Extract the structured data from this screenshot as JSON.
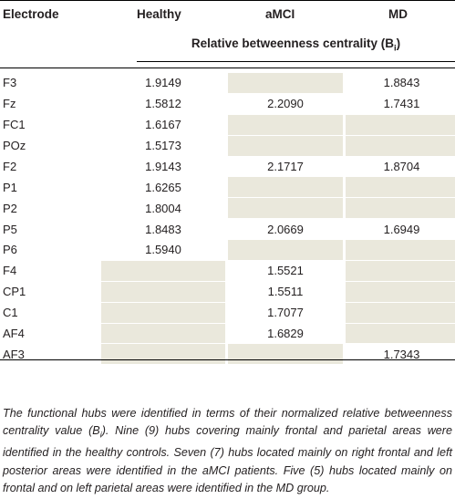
{
  "header": {
    "electrode": "Electrode",
    "healthy": "Healthy",
    "amci": "aMCI",
    "md": "MD"
  },
  "subheader": {
    "text": "Relative betweenness centrality (B",
    "sub": "i",
    "close": ")"
  },
  "rows": [
    {
      "electrode": "F3",
      "healthy": "1.9149",
      "amci": "",
      "md": "1.8843"
    },
    {
      "electrode": "Fz",
      "healthy": "1.5812",
      "amci": "2.2090",
      "md": "1.7431"
    },
    {
      "electrode": "FC1",
      "healthy": "1.6167",
      "amci": "",
      "md": ""
    },
    {
      "electrode": "POz",
      "healthy": "1.5173",
      "amci": "",
      "md": ""
    },
    {
      "electrode": "F2",
      "healthy": "1.9143",
      "amci": "2.1717",
      "md": "1.8704"
    },
    {
      "electrode": "P1",
      "healthy": "1.6265",
      "amci": "",
      "md": ""
    },
    {
      "electrode": "P2",
      "healthy": "1.8004",
      "amci": "",
      "md": ""
    },
    {
      "electrode": "P5",
      "healthy": "1.8483",
      "amci": "2.0669",
      "md": "1.6949"
    },
    {
      "electrode": "P6",
      "healthy": "1.5940",
      "amci": "",
      "md": ""
    },
    {
      "electrode": "F4",
      "healthy": "",
      "amci": "1.5521",
      "md": ""
    },
    {
      "electrode": "CP1",
      "healthy": "",
      "amci": "1.5511",
      "md": ""
    },
    {
      "electrode": "C1",
      "healthy": "",
      "amci": "1.7077",
      "md": ""
    },
    {
      "electrode": "AF4",
      "healthy": "",
      "amci": "1.6829",
      "md": ""
    },
    {
      "electrode": "AF3",
      "healthy": "",
      "amci": "",
      "md": "1.7343"
    }
  ],
  "caption": {
    "part1": "The functional hubs were identified in terms of their normalized relative betweenness centrality value (B",
    "sub": "i",
    "part2": "). Nine (9) hubs covering mainly frontal and parietal areas were identified in the healthy controls. Seven (7) hubs located mainly on right frontal and left posterior areas were identified in the aMCI patients. Five (5) hubs located mainly on frontal and on left parietal areas were identified in the MD group."
  },
  "colors": {
    "shade": "#eae8dc",
    "rule": "#000000"
  }
}
